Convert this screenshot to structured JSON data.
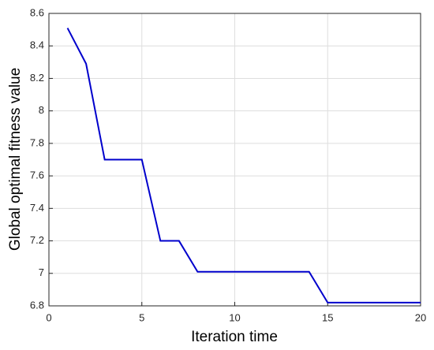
{
  "chart_data": {
    "type": "line",
    "x_label": "Iteration time",
    "y_label": "Global optimal fitness value",
    "x": [
      1,
      2,
      3,
      4,
      5,
      6,
      7,
      8,
      9,
      10,
      11,
      12,
      13,
      14,
      15,
      16,
      17,
      18,
      19,
      20
    ],
    "series": [
      {
        "name": "Global optimal fitness value",
        "color": "#0000cc",
        "values": [
          8.51,
          8.29,
          7.7,
          7.7,
          7.7,
          7.2,
          7.2,
          7.01,
          7.01,
          7.01,
          7.01,
          7.01,
          7.01,
          7.01,
          6.82,
          6.82,
          6.82,
          6.82,
          6.82,
          6.82
        ]
      }
    ],
    "xlim": [
      0,
      20
    ],
    "xticks": [
      0,
      5,
      10,
      15,
      20
    ],
    "ylim": [
      6.8,
      8.6
    ],
    "yticks": [
      6.8,
      7,
      7.2,
      7.4,
      7.6,
      7.8,
      8,
      8.2,
      8.4,
      8.6
    ],
    "grid": true
  }
}
